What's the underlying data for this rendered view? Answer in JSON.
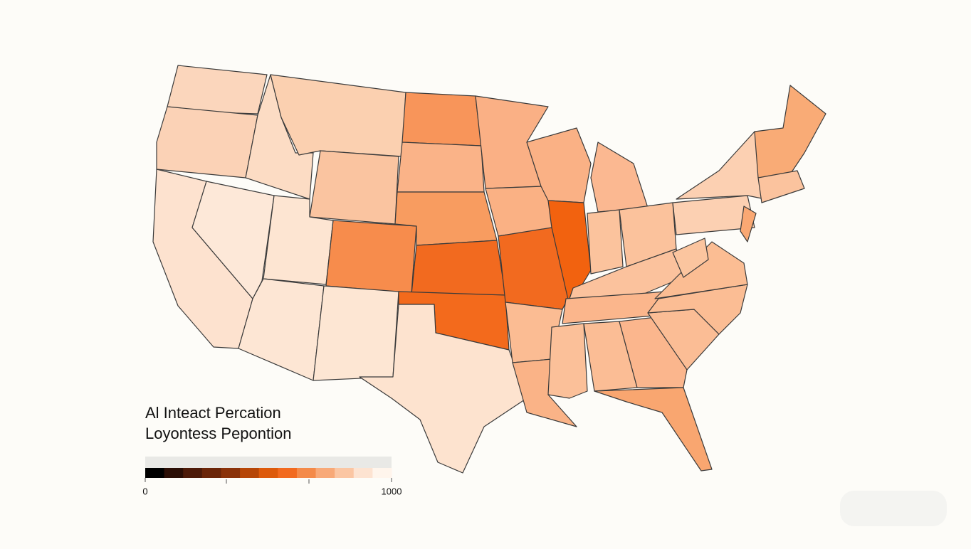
{
  "map": {
    "fills": [
      "#fbd6bc",
      "#fbd2b6",
      "#fde2cf",
      "#fde8d8",
      "#fcdcc4",
      "#fbd0b0",
      "#fac4a0",
      "#fde5d2",
      "#fde6d4",
      "#f78c4c",
      "#fde6d3",
      "#f8955a",
      "#fab388",
      "#f89c60",
      "#f26a1f",
      "#f36a1c",
      "#fde3cf",
      "#fab085",
      "#fab184",
      "#f26a1f",
      "#fbbc93",
      "#fab387",
      "#fab185",
      "#f2620f",
      "#fbb891",
      "#fbc39d",
      "#fbc29c",
      "#fbc29d",
      "#fbb68c",
      "#fbc099",
      "#fbbd95",
      "#fbb68d",
      "#f9a670",
      "#fbbd95",
      "#fbbd94",
      "#fbbd93",
      "#fbc59f",
      "#fcd0b2",
      "#fcd0b2",
      "#faa873",
      "#f9ab76",
      "#fbc39e"
    ]
  },
  "legend": {
    "title": [
      "Al Inteact Percation",
      "Loyontess Pepontion"
    ],
    "colors": [
      "#000000",
      "#2b0e05",
      "#4d1a08",
      "#6b2508",
      "#8a3209",
      "#b64607",
      "#dd5a0b",
      "#f26a1f",
      "#f48a49",
      "#f8a978",
      "#fbc6a3",
      "#fde3d1",
      "#fff5ec"
    ],
    "lim": [
      0,
      1000
    ],
    "ticks": [
      0,
      1000
    ]
  }
}
